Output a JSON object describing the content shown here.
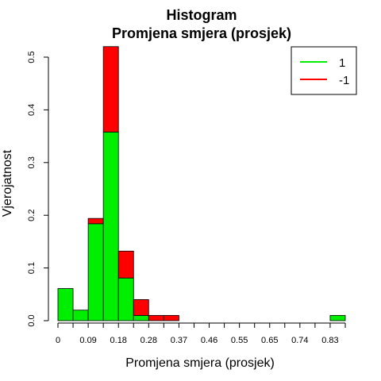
{
  "chart_data": {
    "type": "bar",
    "stacked": true,
    "title_line1": "Histogram",
    "title_line2": "Promjena smjera (prosjek)",
    "xlabel": "Promjena smjera (prosjek)",
    "ylabel": "Vjerojatnost",
    "xlim": [
      0,
      0.87
    ],
    "ylim": [
      0,
      0.5
    ],
    "bin_width": 0.0458,
    "bin_starts": [
      0,
      0.0458,
      0.0916,
      0.1374,
      0.1832,
      0.2289,
      0.2747,
      0.3205,
      0.8242
    ],
    "x_ticks": [
      0,
      0.0458,
      0.0916,
      0.1374,
      0.1832,
      0.2289,
      0.2747,
      0.3205,
      0.3663,
      0.4121,
      0.4579,
      0.5037,
      0.5495,
      0.5953,
      0.6411,
      0.6868,
      0.7326,
      0.7784,
      0.8242,
      0.87
    ],
    "x_tick_labels": [
      {
        "value": 0,
        "label": "0"
      },
      {
        "value": 0.0916,
        "label": "0.09"
      },
      {
        "value": 0.1832,
        "label": "0.18"
      },
      {
        "value": 0.2747,
        "label": "0.28"
      },
      {
        "value": 0.3663,
        "label": "0.37"
      },
      {
        "value": 0.4579,
        "label": "0.46"
      },
      {
        "value": 0.5495,
        "label": "0.55"
      },
      {
        "value": 0.6411,
        "label": "0.65"
      },
      {
        "value": 0.7326,
        "label": "0.74"
      },
      {
        "value": 0.8242,
        "label": "0.83"
      }
    ],
    "y_ticks": [
      {
        "value": 0,
        "label": "0.0"
      },
      {
        "value": 0.1,
        "label": "0.1"
      },
      {
        "value": 0.2,
        "label": "0.2"
      },
      {
        "value": 0.3,
        "label": "0.3"
      },
      {
        "value": 0.4,
        "label": "0.4"
      },
      {
        "value": 0.5,
        "label": "0.5"
      }
    ],
    "series": [
      {
        "name": "1",
        "color": "#00ee00",
        "values": [
          0.061,
          0.02,
          0.184,
          0.358,
          0.081,
          0.01,
          0.0,
          0.0,
          0.01
        ]
      },
      {
        "name": "-1",
        "color": "#ff0000",
        "values": [
          0.0,
          0.0,
          0.01,
          0.162,
          0.051,
          0.03,
          0.01,
          0.01,
          0.0
        ]
      }
    ],
    "legend": {
      "position": "top-right",
      "entries": [
        {
          "label": "1",
          "color": "#00ee00"
        },
        {
          "label": "-1",
          "color": "#ff0000"
        }
      ]
    }
  }
}
